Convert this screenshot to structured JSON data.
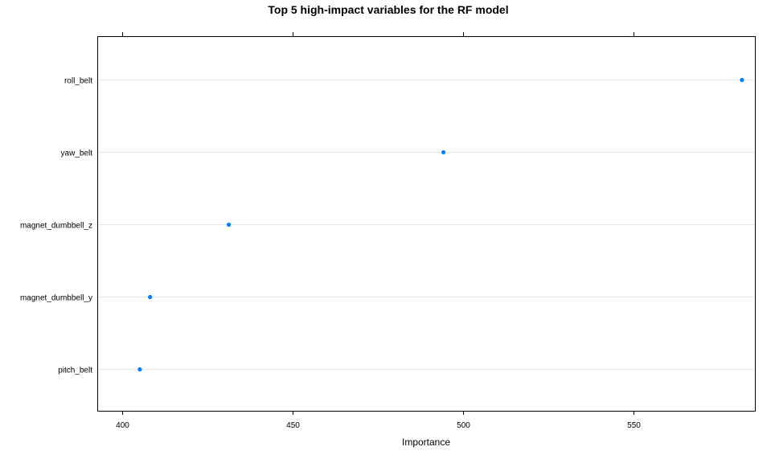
{
  "chart_data": {
    "type": "scatter",
    "title": "Top 5 high-impact variables for the RF model",
    "xlabel": "Importance",
    "ylabel": "",
    "categories": [
      "roll_belt",
      "yaw_belt",
      "magnet_dumbbell_z",
      "magnet_dumbbell_y",
      "pitch_belt"
    ],
    "values": [
      581.8,
      494.2,
      431.2,
      408.1,
      405.1
    ],
    "xlim": [
      392.6,
      585.6
    ],
    "xticks": [
      400,
      450,
      500,
      550
    ],
    "grid": "horizontal",
    "colors": {
      "point": "#0080ff",
      "grid": "#e6e6e6",
      "frame": "#000000"
    }
  }
}
